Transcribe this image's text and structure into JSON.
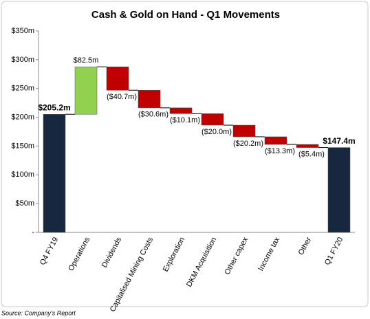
{
  "chart_data": {
    "type": "waterfall",
    "title": "Cash & Gold on Hand - Q1 Movements",
    "categories": [
      "Q4 FY19",
      "Operations",
      "Dividends",
      "Capitalised Mining Costs",
      "Exploration",
      "DKM Acquisition",
      "Other capex",
      "Income tax",
      "Other",
      "Q1 FY20"
    ],
    "values": [
      205.2,
      82.5,
      -40.7,
      -30.6,
      -10.1,
      -20.0,
      -20.2,
      -13.3,
      -5.4,
      147.4
    ],
    "value_labels": [
      "$205.2m",
      "$82.5m",
      "($40.7m)",
      "($30.6m)",
      "($10.1m)",
      "($20.0m)",
      "($20.2m)",
      "($13.3m)",
      "($5.4m)",
      "$147.4m"
    ],
    "colors": {
      "total": "#17273f",
      "increase": "#92d050",
      "decrease": "#c00000"
    },
    "ylim": [
      0,
      350
    ],
    "yticks": [
      {
        "value": 0,
        "label": "-"
      },
      {
        "value": 50,
        "label": "$50m"
      },
      {
        "value": 100,
        "label": "$100m"
      },
      {
        "value": 150,
        "label": "$150m"
      },
      {
        "value": 200,
        "label": "$200m"
      },
      {
        "value": 250,
        "label": "$250m"
      },
      {
        "value": 300,
        "label": "$300m"
      },
      {
        "value": 350,
        "label": "$350m"
      }
    ],
    "grid": false,
    "source": "Source: Company's Report"
  }
}
